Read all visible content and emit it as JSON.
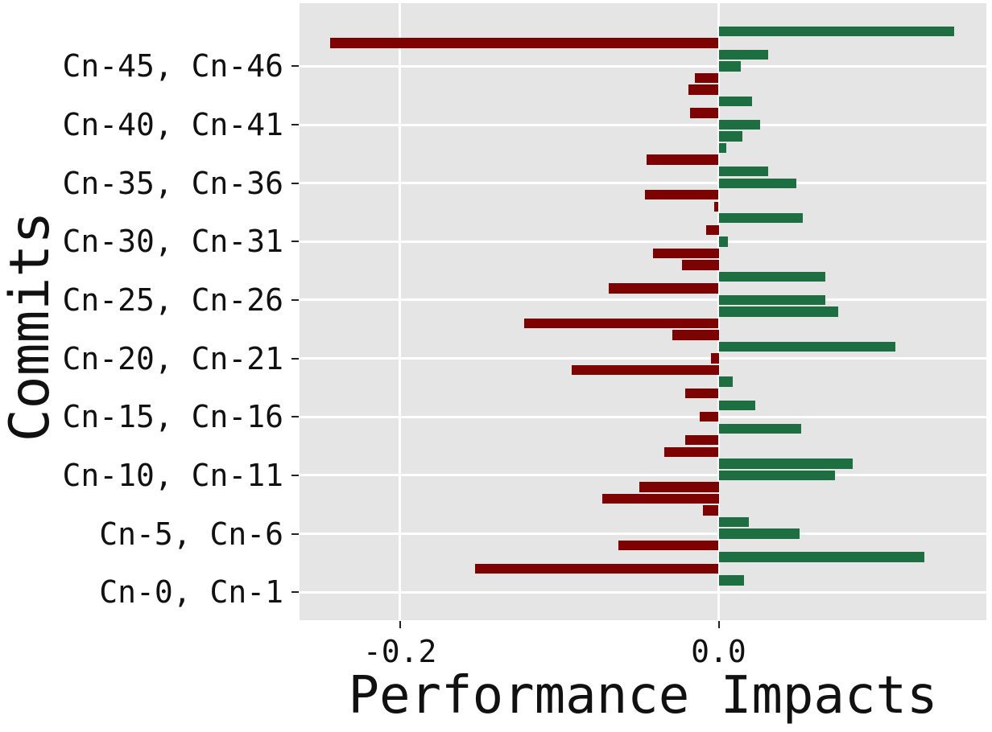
{
  "figure": {
    "background": "#ffffff",
    "plot_background": "#e5e5e5",
    "grid_color": "#ffffff",
    "text_color": "#111111"
  },
  "chart_data": {
    "type": "bar",
    "orientation": "horizontal",
    "title": "",
    "xlabel": "Performance Impacts",
    "ylabel": "Commits",
    "grid": true,
    "legend": false,
    "xlim": [
      -0.263,
      0.168
    ],
    "ylim": [
      -2.4,
      50.4
    ],
    "x_ticks": [
      {
        "value": -0.2,
        "label": "-0.2"
      },
      {
        "value": 0.0,
        "label": "0.0"
      }
    ],
    "y_ticks": [
      {
        "bar_index": 0,
        "label": "Cn-0, Cn-1"
      },
      {
        "bar_index": 5,
        "label": "Cn-5, Cn-6"
      },
      {
        "bar_index": 10,
        "label": "Cn-10, Cn-11"
      },
      {
        "bar_index": 15,
        "label": "Cn-15, Cn-16"
      },
      {
        "bar_index": 20,
        "label": "Cn-20, Cn-21"
      },
      {
        "bar_index": 25,
        "label": "Cn-25, Cn-26"
      },
      {
        "bar_index": 30,
        "label": "Cn-30, Cn-31"
      },
      {
        "bar_index": 35,
        "label": "Cn-35, Cn-36"
      },
      {
        "bar_index": 40,
        "label": "Cn-40, Cn-41"
      },
      {
        "bar_index": 45,
        "label": "Cn-45, Cn-46"
      }
    ],
    "colors": {
      "positive": "#1d6f42",
      "negative": "#7d0202"
    },
    "values_bottom_to_top": [
      0.0,
      0.016,
      -0.153,
      0.129,
      -0.063,
      0.051,
      0.019,
      -0.01,
      -0.073,
      -0.05,
      0.073,
      0.084,
      -0.034,
      -0.021,
      0.052,
      -0.012,
      0.023,
      -0.021,
      0.009,
      -0.092,
      -0.005,
      0.111,
      -0.029,
      -0.122,
      0.075,
      0.067,
      -0.069,
      0.067,
      -0.023,
      -0.041,
      0.006,
      -0.008,
      0.053,
      -0.003,
      -0.046,
      0.049,
      0.031,
      -0.045,
      0.005,
      0.015,
      0.026,
      -0.018,
      0.021,
      -0.019,
      -0.015,
      0.014,
      0.031,
      -0.244,
      0.148
    ]
  }
}
